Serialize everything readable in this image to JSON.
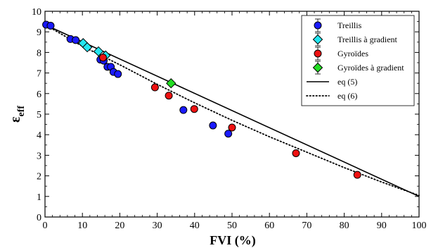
{
  "chart_data": {
    "type": "scatter",
    "xlabel": "FVI (%)",
    "ylabel_main": "ε",
    "ylabel_sub": "eff",
    "xlim": [
      0,
      100
    ],
    "ylim": [
      0,
      10
    ],
    "x_ticks": [
      0,
      10,
      20,
      30,
      40,
      50,
      60,
      70,
      80,
      90,
      100
    ],
    "y_ticks": [
      0,
      1,
      2,
      3,
      4,
      5,
      6,
      7,
      8,
      9,
      10
    ],
    "grid": false,
    "legend_position": "top-right",
    "series": [
      {
        "name": "Treillis",
        "marker": "circle",
        "color": "#1a1aff",
        "points": [
          [
            0.3,
            9.35
          ],
          [
            1.5,
            9.3
          ],
          [
            6.8,
            8.65
          ],
          [
            8.2,
            8.6
          ],
          [
            14.8,
            7.65
          ],
          [
            15.7,
            7.6
          ],
          [
            16.7,
            7.3
          ],
          [
            17.6,
            7.3
          ],
          [
            18.3,
            7.05
          ],
          [
            19.5,
            6.95
          ],
          [
            37.0,
            5.2
          ],
          [
            44.9,
            4.45
          ],
          [
            49.0,
            4.05
          ]
        ]
      },
      {
        "name": "Treillis à gradient",
        "marker": "diamond",
        "color": "#22e6f0",
        "points": [
          [
            10.2,
            8.45
          ],
          [
            11.3,
            8.25
          ],
          [
            14.3,
            8.05
          ],
          [
            16.2,
            7.85
          ]
        ]
      },
      {
        "name": "Gyroïdes",
        "marker": "circle",
        "color": "#ee1111",
        "points": [
          [
            15.5,
            7.75
          ],
          [
            29.4,
            6.3
          ],
          [
            33.1,
            5.9
          ],
          [
            39.9,
            5.25
          ],
          [
            50.0,
            4.35
          ],
          [
            67.1,
            3.1
          ],
          [
            83.5,
            2.05
          ]
        ]
      },
      {
        "name": "Gyroïdes à gradient",
        "marker": "diamond",
        "color": "#22dd22",
        "points": [
          [
            33.7,
            6.5
          ]
        ]
      },
      {
        "name": "eq (5)",
        "style": "solid",
        "color": "#000000",
        "points": [
          [
            0,
            9.35
          ],
          [
            100,
            1.0
          ]
        ]
      },
      {
        "name": "eq (6)",
        "style": "dotted",
        "color": "#000000",
        "points": [
          [
            0,
            9.35
          ],
          [
            10,
            8.3
          ],
          [
            20,
            7.4
          ],
          [
            30,
            6.45
          ],
          [
            40,
            5.55
          ],
          [
            50,
            4.7
          ],
          [
            60,
            3.9
          ],
          [
            70,
            3.15
          ],
          [
            80,
            2.4
          ],
          [
            90,
            1.7
          ],
          [
            100,
            1.05
          ]
        ]
      }
    ]
  }
}
